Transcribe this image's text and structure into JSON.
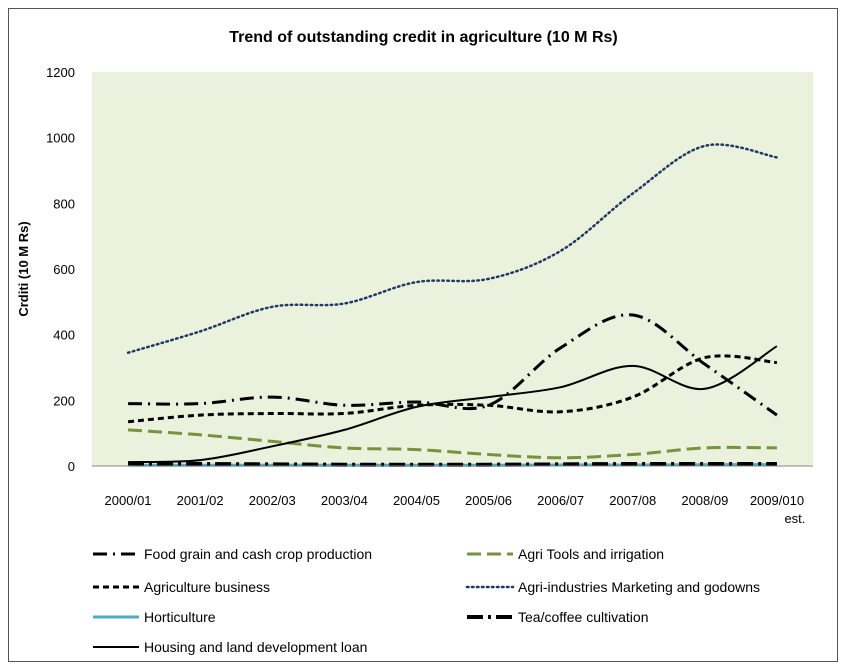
{
  "chart_data": {
    "type": "line",
    "title": "Trend of outstanding credit in agriculture (10 M Rs)",
    "ylabel": "Crditi (10 M Rs)",
    "xlabel": "",
    "ylim": [
      0,
      1200
    ],
    "yticks": [
      0,
      200,
      400,
      600,
      800,
      1000,
      1200
    ],
    "grid": false,
    "legend_position": "bottom",
    "plot_background": "#eaf1dd",
    "categories": [
      "2000/01",
      "2001/02",
      "2002/03",
      "2003/04",
      "2004/05",
      "2005/06",
      "2006/07",
      "2007/08",
      "2008/09",
      "2009/010"
    ],
    "category_sublabels": [
      "",
      "",
      "",
      "",
      "",
      "",
      "",
      "",
      "",
      "est."
    ],
    "series": [
      {
        "name": "Food grain and cash crop production",
        "color": "#000000",
        "style": "longdash-dot",
        "values": [
          190,
          190,
          210,
          185,
          195,
          185,
          360,
          460,
          310,
          155
        ]
      },
      {
        "name": "Agri Tools and irrigation",
        "color": "#77933c",
        "style": "longdash",
        "values": [
          110,
          95,
          75,
          55,
          50,
          35,
          25,
          35,
          55,
          55
        ]
      },
      {
        "name": "Agriculture business",
        "color": "#000000",
        "style": "dash",
        "values": [
          135,
          155,
          160,
          160,
          185,
          185,
          165,
          210,
          330,
          315
        ]
      },
      {
        "name": "Agri-industries Marketing and godowns",
        "color": "#1f3864",
        "style": "dot",
        "values": [
          345,
          410,
          485,
          495,
          560,
          570,
          655,
          830,
          975,
          940
        ]
      },
      {
        "name": "Horticulture",
        "color": "#4bacc6",
        "style": "solid-thick",
        "values": [
          2,
          2,
          2,
          2,
          2,
          2,
          3,
          3,
          4,
          4
        ]
      },
      {
        "name": "Tea/coffee cultivation",
        "color": "#000000",
        "style": "longdash-dot-thick",
        "values": [
          8,
          6,
          5,
          4,
          4,
          4,
          5,
          6,
          6,
          6
        ]
      },
      {
        "name": "Housing and land development loan",
        "color": "#000000",
        "style": "solid",
        "values": [
          12,
          18,
          60,
          110,
          180,
          210,
          240,
          305,
          235,
          365
        ]
      }
    ]
  }
}
